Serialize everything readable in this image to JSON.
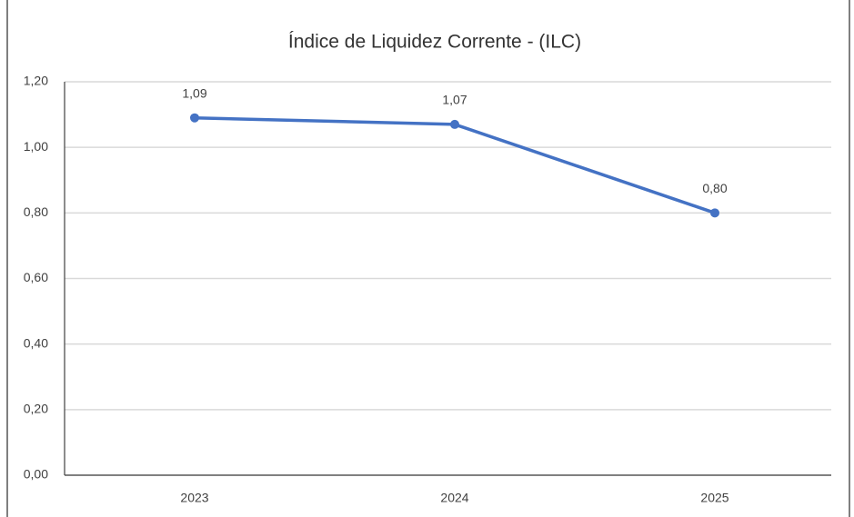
{
  "chart_data": {
    "type": "line",
    "title": "Índice de Liquidez Corrente - (ILC)",
    "categories": [
      "2023",
      "2024",
      "2025"
    ],
    "series": [
      {
        "name": "ILC",
        "color": "#4472c4",
        "values": [
          1.09,
          1.07,
          0.8
        ],
        "value_labels": [
          "1,09",
          "1,07",
          "0,80"
        ]
      }
    ],
    "ylim": [
      0,
      1.2
    ],
    "yticks": [
      {
        "value": 0,
        "label": "0,00"
      },
      {
        "value": 0.2,
        "label": "0,20"
      },
      {
        "value": 0.4,
        "label": "0,40"
      },
      {
        "value": 0.6,
        "label": "0,60"
      },
      {
        "value": 0.8,
        "label": "0,80"
      },
      {
        "value": 1.0,
        "label": "1,00"
      },
      {
        "value": 1.2,
        "label": "1,20"
      }
    ],
    "grid": true
  }
}
